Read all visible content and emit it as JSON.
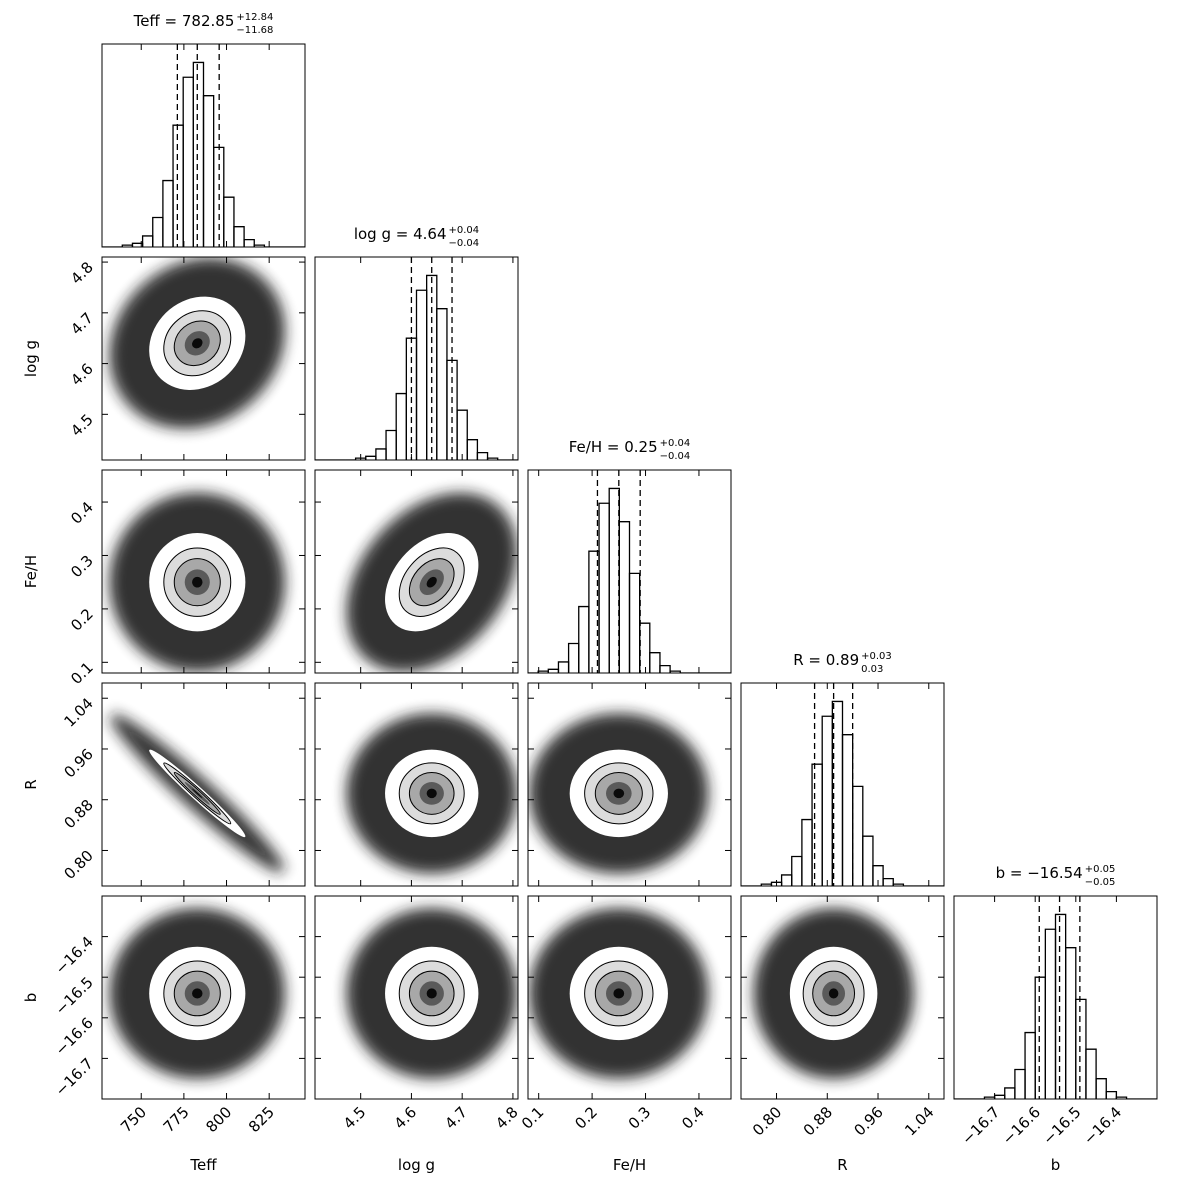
{
  "chart_data": {
    "type": "corner",
    "hist_ylim": [
      0,
      110
    ],
    "parameters": [
      {
        "label": "Teff",
        "title": "Teff = 782.85",
        "title_upper": "+12.84",
        "title_lower": "−11.68",
        "xlim": [
          727,
          846
        ],
        "xticks": [
          750,
          775,
          800,
          825
        ],
        "bins": [
          727,
          732.95,
          738.9,
          744.85,
          750.8,
          756.75,
          762.7,
          768.65,
          774.6,
          780.55,
          786.5,
          792.45,
          798.4,
          804.35,
          810.3,
          816.25,
          822.2,
          828.15,
          834.1,
          840.05,
          846
        ],
        "counts": [
          0,
          0,
          1,
          2,
          6,
          16,
          36,
          66,
          92,
          100,
          82,
          54,
          27,
          11,
          4,
          1,
          0,
          0,
          0,
          0
        ],
        "quantiles": [
          771.17,
          782.85,
          795.69
        ]
      },
      {
        "label": "log g",
        "title": "log g = 4.64",
        "title_upper": "+0.04",
        "title_lower": "−0.04",
        "xlim": [
          4.41,
          4.81
        ],
        "xticks": [
          4.5,
          4.6,
          4.7,
          4.8
        ],
        "bins": [
          4.41,
          4.43,
          4.45,
          4.47,
          4.49,
          4.51,
          4.53,
          4.55,
          4.57,
          4.59,
          4.61,
          4.63,
          4.65,
          4.67,
          4.69,
          4.71,
          4.73,
          4.75,
          4.77,
          4.79,
          4.81
        ],
        "counts": [
          0,
          0,
          0,
          0,
          1,
          2,
          6,
          16,
          36,
          66,
          92,
          100,
          82,
          54,
          27,
          11,
          4,
          1,
          0,
          0
        ],
        "quantiles": [
          4.6,
          4.64,
          4.68
        ]
      },
      {
        "label": "Fe/H",
        "title": "Fe/H = 0.25",
        "title_upper": "+0.04",
        "title_lower": "−0.04",
        "xlim": [
          0.08,
          0.46
        ],
        "xticks": [
          0.1,
          0.2,
          0.3,
          0.4
        ],
        "bins": [
          0.08,
          0.099,
          0.118,
          0.137,
          0.156,
          0.175,
          0.194,
          0.213,
          0.232,
          0.251,
          0.27,
          0.289,
          0.308,
          0.327,
          0.346,
          0.365,
          0.384,
          0.403,
          0.422,
          0.441,
          0.46
        ],
        "counts": [
          0,
          1,
          2,
          6,
          16,
          36,
          66,
          92,
          100,
          82,
          54,
          27,
          11,
          4,
          1,
          0,
          0,
          0,
          0,
          0
        ],
        "quantiles": [
          0.21,
          0.25,
          0.29
        ]
      },
      {
        "label": "R",
        "title": "R = 0.89",
        "title_upper": "+0.03",
        "title_lower": "0.03",
        "xlim": [
          0.744,
          1.064
        ],
        "xticks": [
          {
            "value": 0.8,
            "label": "0.80"
          },
          {
            "value": 0.88,
            "label": "0.88"
          },
          {
            "value": 0.96,
            "label": "0.96"
          },
          {
            "value": 1.04,
            "label": "1.04"
          }
        ],
        "bins": [
          0.744,
          0.76,
          0.776,
          0.792,
          0.808,
          0.824,
          0.84,
          0.856,
          0.872,
          0.888,
          0.904,
          0.92,
          0.936,
          0.952,
          0.968,
          0.984,
          1.0,
          1.016,
          1.032,
          1.048,
          1.064
        ],
        "counts": [
          0,
          0,
          1,
          2,
          6,
          16,
          36,
          66,
          92,
          100,
          82,
          54,
          27,
          11,
          4,
          1,
          0,
          0,
          0,
          0
        ],
        "quantiles": [
          0.86,
          0.89,
          0.92
        ]
      },
      {
        "label": "b",
        "title": "b = −16.54",
        "title_upper": "+0.05",
        "title_lower": "−0.05",
        "xlim": [
          -16.8,
          -16.3
        ],
        "xticks": [
          {
            "value": -16.7,
            "label": "−16.7"
          },
          {
            "value": -16.6,
            "label": "−16.6"
          },
          {
            "value": -16.5,
            "label": "−16.5"
          },
          {
            "value": -16.4,
            "label": "−16.4"
          }
        ],
        "bins": [
          -16.8,
          -16.775,
          -16.75,
          -16.725,
          -16.7,
          -16.675,
          -16.65,
          -16.625,
          -16.6,
          -16.575,
          -16.55,
          -16.525,
          -16.5,
          -16.475,
          -16.45,
          -16.425,
          -16.4,
          -16.375,
          -16.35,
          -16.325,
          -16.3
        ],
        "counts": [
          0,
          0,
          0,
          1,
          2,
          6,
          16,
          36,
          66,
          92,
          100,
          82,
          54,
          27,
          11,
          4,
          1,
          0,
          0,
          0
        ],
        "quantiles": [
          -16.59,
          -16.54,
          -16.49
        ]
      }
    ],
    "pairs": [
      {
        "x": 0,
        "y": 1,
        "correlation": 0.15
      },
      {
        "x": 0,
        "y": 2,
        "correlation": 0
      },
      {
        "x": 1,
        "y": 2,
        "correlation": 0.35
      },
      {
        "x": 0,
        "y": 3,
        "correlation": -0.98
      },
      {
        "x": 1,
        "y": 3,
        "correlation": 0
      },
      {
        "x": 2,
        "y": 3,
        "correlation": 0
      },
      {
        "x": 0,
        "y": 4,
        "correlation": 0
      },
      {
        "x": 1,
        "y": 4,
        "correlation": 0
      },
      {
        "x": 2,
        "y": 4,
        "correlation": 0
      },
      {
        "x": 3,
        "y": 4,
        "correlation": 0
      }
    ]
  }
}
